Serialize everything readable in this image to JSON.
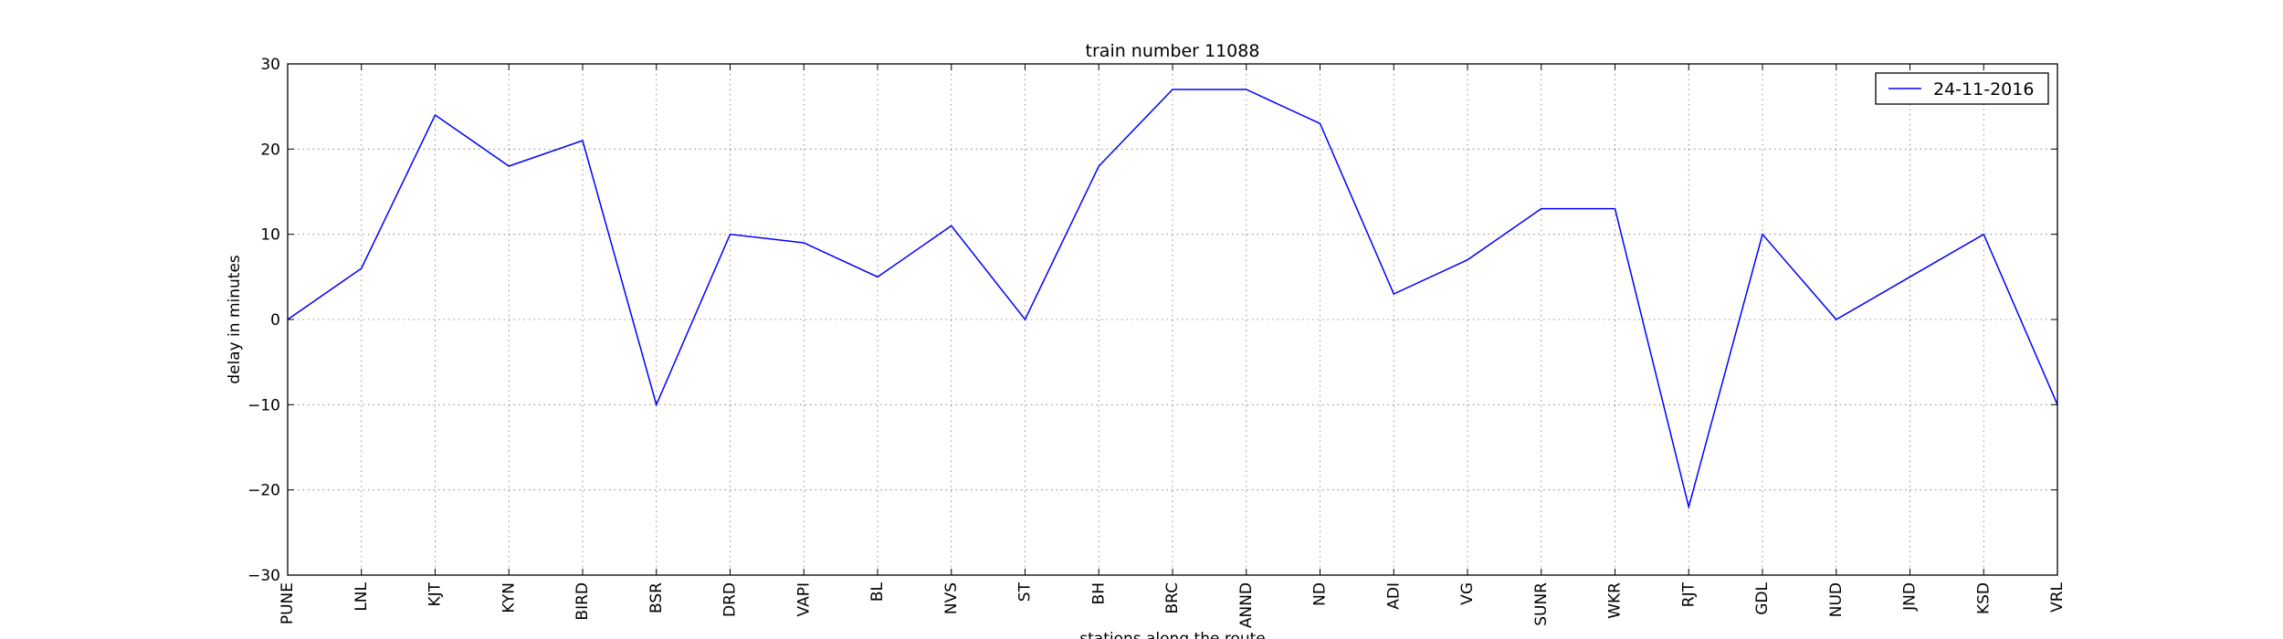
{
  "chart_data": {
    "type": "line",
    "title": "train number 11088",
    "xlabel": "stations along the route",
    "ylabel": "delay in minutes",
    "categories": [
      "PUNE",
      "LNL",
      "KJT",
      "KYN",
      "BIRD",
      "BSR",
      "DRD",
      "VAPI",
      "BL",
      "NVS",
      "ST",
      "BH",
      "BRC",
      "ANND",
      "ND",
      "ADI",
      "VG",
      "SUNR",
      "WKR",
      "RJT",
      "GDL",
      "NUD",
      "JND",
      "KSD",
      "VRL"
    ],
    "series": [
      {
        "name": "24-11-2016",
        "color": "#0000ff",
        "values": [
          0,
          6,
          24,
          18,
          21,
          -10,
          10,
          9,
          5,
          11,
          0,
          18,
          27,
          27,
          23,
          3,
          7,
          13,
          13,
          -22,
          10,
          0,
          5,
          10,
          -10
        ]
      }
    ],
    "ylim": [
      -30,
      30
    ],
    "yticks": [
      30,
      20,
      10,
      0,
      -10,
      -20,
      -30
    ],
    "ytick_labels": [
      "30",
      "20",
      "10",
      "0",
      "−10",
      "−20",
      "−30"
    ],
    "grid": true,
    "legend_position": "top-right"
  }
}
